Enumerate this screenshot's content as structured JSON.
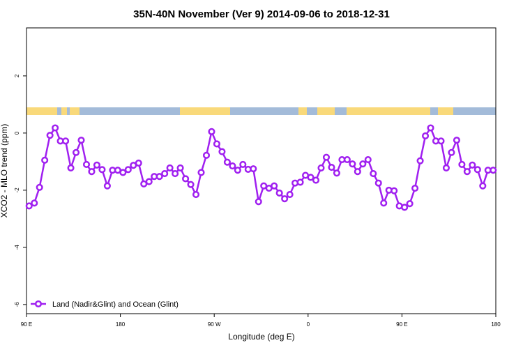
{
  "chart_data": {
    "type": "line",
    "title": "35N-40N November (Ver 9)   2014-09-06 to 2018-12-31",
    "x_label": "Longitude (deg E)",
    "y_label": "XCO2 - MLO trend (ppm)",
    "x": [
      92.5,
      97.5,
      102.5,
      107.5,
      112.5,
      117.5,
      122.5,
      127.5,
      132.5,
      137.5,
      142.5,
      147.5,
      152.5,
      157.5,
      162.5,
      167.5,
      172.5,
      177.5,
      182.5,
      187.5,
      192.5,
      197.5,
      202.5,
      207.5,
      212.5,
      217.5,
      222.5,
      227.5,
      232.5,
      237.5,
      242.5,
      247.5,
      252.5,
      257.5,
      262.5,
      267.5,
      272.5,
      277.5,
      282.5,
      287.5,
      292.5,
      297.5,
      302.5,
      307.5,
      312.5,
      317.5,
      322.5,
      327.5,
      332.5,
      337.5,
      342.5,
      347.5,
      352.5,
      357.5,
      362.5,
      367.5,
      372.5,
      377.5,
      382.5,
      387.5,
      392.5,
      397.5,
      402.5,
      407.5,
      412.5,
      417.5,
      422.5,
      427.5,
      432.5,
      437.5,
      442.5,
      447.5,
      452.5,
      457.5,
      462.5,
      467.5,
      472.5,
      477.5,
      482.5,
      487.5,
      492.5,
      497.5,
      502.5,
      507.5,
      512.5,
      517.5,
      522.5,
      527.5,
      532.5,
      537.5
    ],
    "series": [
      {
        "name": "Land (Nadir&Glint) and Ocean (Glint)",
        "color": "#a020f0",
        "values": [
          -2.55,
          -2.45,
          -1.9,
          -0.95,
          -0.08,
          0.18,
          -0.28,
          -0.28,
          -1.22,
          -0.68,
          -0.25,
          -1.1,
          -1.35,
          -1.12,
          -1.28,
          -1.85,
          -1.3,
          -1.3,
          -1.38,
          -1.28,
          -1.13,
          -1.05,
          -1.78,
          -1.7,
          -1.52,
          -1.52,
          -1.42,
          -1.22,
          -1.42,
          -1.22,
          -1.6,
          -1.8,
          -2.15,
          -1.38,
          -0.78,
          0.05,
          -0.38,
          -0.65,
          -1.02,
          -1.15,
          -1.3,
          -1.1,
          -1.27,
          -1.25,
          -2.4,
          -1.85,
          -1.93,
          -1.85,
          -2.1,
          -2.3,
          -2.15,
          -1.75,
          -1.72,
          -1.48,
          -1.55,
          -1.65,
          -1.22,
          -0.85,
          -1.2,
          -1.4,
          -0.93,
          -0.93,
          -1.08,
          -1.35,
          -1.08,
          -0.93,
          -1.42,
          -1.75,
          -2.45,
          -2.0,
          -2.02,
          -2.55,
          -2.6,
          -2.47,
          -1.93,
          -0.97,
          -0.1,
          0.18,
          -0.28,
          -0.28,
          -1.22,
          -0.68,
          -0.25,
          -1.1,
          -1.35,
          -1.12,
          -1.28,
          -1.85,
          -1.3,
          -1.3
        ]
      }
    ],
    "xlim": [
      90,
      540
    ],
    "xticks": [
      {
        "value": 90,
        "label": "90 E"
      },
      180,
      {
        "value": 270,
        "label": "90 W"
      },
      {
        "value": 360,
        "label": "0"
      },
      {
        "value": 450,
        "label": "90 E"
      },
      {
        "value": 540,
        "label": "180"
      }
    ],
    "ylim": [
      -6.32,
      3.68
    ],
    "yticks": [
      -6,
      -4,
      -2,
      0,
      2
    ],
    "legend": "bottom-left"
  }
}
